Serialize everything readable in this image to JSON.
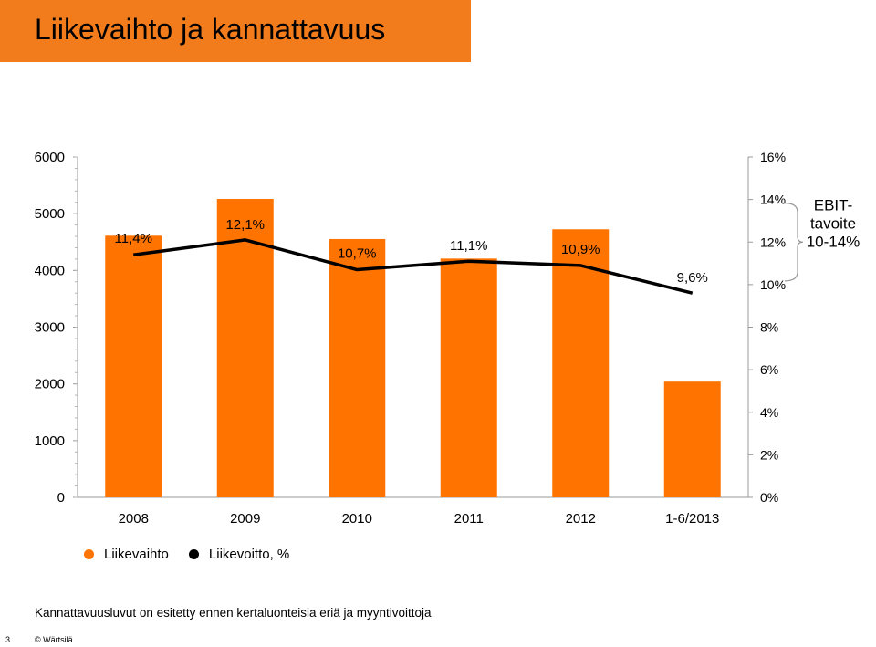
{
  "slide": {
    "title": "Liikevaihto ja kannattavuus",
    "footnote": "Kannattavuusluvut on esitetty ennen kertaluonteisia eriä ja myyntivoittoja",
    "page_number": "3",
    "copyright": "© Wärtsilä"
  },
  "colors": {
    "accent": "#f27c1b",
    "line": "#000000",
    "bar": "#ff7300"
  },
  "chart_data": {
    "type": "bar",
    "categories": [
      "2008",
      "2009",
      "2010",
      "2011",
      "2012",
      "1-6/2013"
    ],
    "series": [
      {
        "name": "Liikevaihto",
        "kind": "bar",
        "axis": "left",
        "values": [
          4612,
          5260,
          4553,
          4209,
          4725,
          2040
        ]
      },
      {
        "name": "Liikevoitto, %",
        "kind": "line",
        "axis": "right",
        "values": [
          11.4,
          12.1,
          10.7,
          11.1,
          10.9,
          9.6
        ],
        "labels": [
          "11,4%",
          "12,1%",
          "10,7%",
          "11,1%",
          "10,9%",
          "9,6%"
        ]
      }
    ],
    "left_axis": {
      "ylim": [
        0,
        6000
      ],
      "ticks": [
        "0",
        "1000",
        "2000",
        "3000",
        "4000",
        "5000",
        "6000"
      ]
    },
    "right_axis": {
      "ylim": [
        0,
        16
      ],
      "ticks": [
        "0%",
        "2%",
        "4%",
        "6%",
        "8%",
        "10%",
        "12%",
        "14%",
        "16%"
      ]
    },
    "target_band": {
      "from": 10,
      "to": 14,
      "label_lines": [
        "EBIT-",
        "tavoite",
        "10-14%"
      ]
    },
    "legend": [
      "Liikevaihto",
      "Liikevoitto, %"
    ],
    "legend_position": "bottom-left",
    "grid": false
  }
}
